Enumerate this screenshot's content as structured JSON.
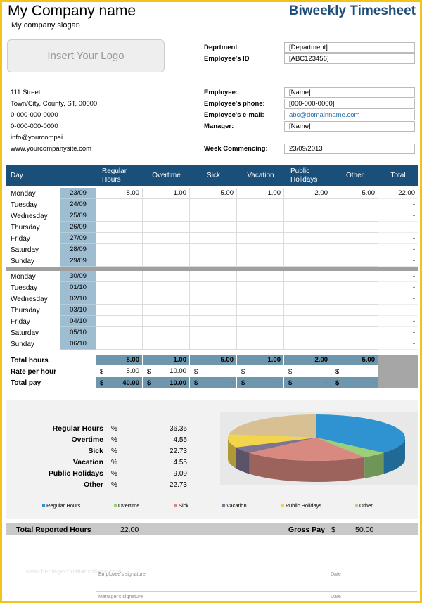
{
  "header": {
    "company": "My Company name",
    "slogan": "My company slogan",
    "title": "Biweekly Timesheet",
    "logo": "Insert Your Logo"
  },
  "address": [
    "111 Street",
    "Town/City, County, ST, 00000",
    "0-000-000-0000",
    "0-000-000-0000",
    "info@yourcompai",
    "www.yourcompanysite.com"
  ],
  "fields_top": [
    {
      "label": "Deprtment",
      "value": "[Department]"
    },
    {
      "label": "Employee's ID",
      "value": "[ABC123456]"
    }
  ],
  "fields": [
    {
      "label": "Employee:",
      "value": "[Name]"
    },
    {
      "label": "Employee's phone:",
      "value": "[000-000-0000]"
    },
    {
      "label": "Employee's e-mail:",
      "value": "abc@domainname.com"
    },
    {
      "label": "Manager:",
      "value": "[Name]"
    }
  ],
  "week": {
    "label": "Week Commencing:",
    "value": "23/09/2013"
  },
  "table": {
    "columns": [
      "Day",
      "Regular Hours",
      "Overtime",
      "Sick",
      "Vacation",
      "Public Holidays",
      "Other",
      "Total"
    ],
    "week1": [
      {
        "day": "Monday",
        "date": "23/09",
        "hours": [
          "8.00",
          "1.00",
          "5.00",
          "1.00",
          "2.00",
          "5.00"
        ],
        "total": "22.00"
      },
      {
        "day": "Tuesday",
        "date": "24/09",
        "total": "-"
      },
      {
        "day": "Wednesday",
        "date": "25/09",
        "total": "-"
      },
      {
        "day": "Thursday",
        "date": "26/09",
        "total": "-"
      },
      {
        "day": "Friday",
        "date": "27/09",
        "total": "-"
      },
      {
        "day": "Saturday",
        "date": "28/09",
        "total": "-"
      },
      {
        "day": "Sunday",
        "date": "29/09",
        "total": "-"
      }
    ],
    "week2": [
      {
        "day": "Monday",
        "date": "30/09",
        "total": "-"
      },
      {
        "day": "Tuesday",
        "date": "01/10",
        "total": "-"
      },
      {
        "day": "Wednesday",
        "date": "02/10",
        "total": "-"
      },
      {
        "day": "Thursday",
        "date": "03/10",
        "total": "-"
      },
      {
        "day": "Friday",
        "date": "04/10",
        "total": "-"
      },
      {
        "day": "Saturday",
        "date": "05/10",
        "total": "-"
      },
      {
        "day": "Sunday",
        "date": "06/10",
        "total": "-"
      }
    ],
    "totals": {
      "hours": {
        "label": "Total hours",
        "values": [
          "8.00",
          "1.00",
          "5.00",
          "1.00",
          "2.00",
          "5.00"
        ]
      },
      "rate": {
        "label": "Rate per hour",
        "currency": "$",
        "values": [
          "5.00",
          "10.00"
        ]
      },
      "pay": {
        "label": "Total pay",
        "currency": "$",
        "values": [
          "40.00",
          "10.00",
          "-",
          "-",
          "-",
          "-"
        ]
      }
    }
  },
  "summary": {
    "unit": "%",
    "items": [
      {
        "label": "Regular Hours",
        "value": 36.36,
        "color": "#2e93d0"
      },
      {
        "label": "Overtime",
        "value": 4.55,
        "color": "#9bcf7a"
      },
      {
        "label": "Sick",
        "value": 22.73,
        "color": "#d98a80"
      },
      {
        "label": "Vacation",
        "value": 4.55,
        "color": "#7e7390"
      },
      {
        "label": "Public Holidays",
        "value": 9.09,
        "color": "#f3d54c"
      },
      {
        "label": "Other",
        "value": 22.73,
        "color": "#d8c092"
      }
    ]
  },
  "footer": {
    "hours_label": "Total Reported Hours",
    "hours": "22.00",
    "pay_label": "Gross Pay",
    "currency": "$",
    "pay": "50.00"
  },
  "signatures": [
    {
      "label": "Employee's signature",
      "date": "Date"
    },
    {
      "label": "Manager's signature",
      "date": "Date"
    }
  ],
  "watermark": "www.heritagechristiancollege.com"
}
